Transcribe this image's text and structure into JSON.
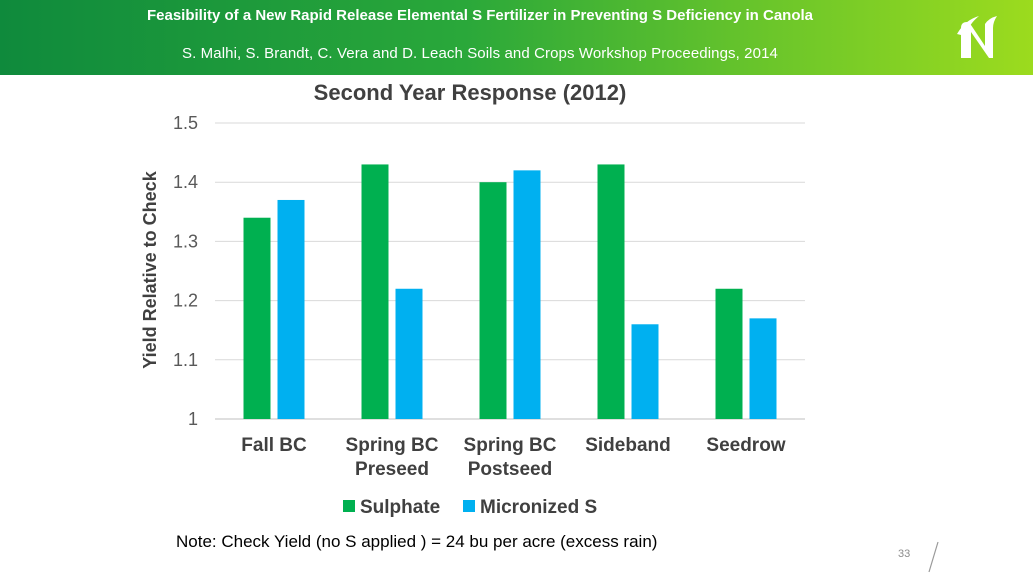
{
  "header": {
    "title": "Feasibility of a New Rapid Release Elemental S Fertilizer in Preventing S Deficiency in Canola",
    "subtitle": "S. Malhi, S. Brandt, C. Vera and D. Leach Soils and Crops Workshop Proceedings, 2014",
    "logo_icon": "stylized-n-leaf-logo-icon"
  },
  "chart_data": {
    "type": "bar",
    "title": "Second Year Response (2012)",
    "xlabel": "",
    "ylabel": "Yield Relative to Check",
    "categories": [
      [
        "Fall BC"
      ],
      [
        "Spring BC",
        "Preseed"
      ],
      [
        "Spring BC",
        "Postseed"
      ],
      [
        "Sideband"
      ],
      [
        "Seedrow"
      ]
    ],
    "ylim": [
      1,
      1.5
    ],
    "yticks": [
      "1",
      "1.1",
      "1.2",
      "1.3",
      "1.4",
      "1.5"
    ],
    "grid": true,
    "legend_position": "bottom",
    "series": [
      {
        "name": "Sulphate",
        "color": "#00b050",
        "values": [
          1.34,
          1.43,
          1.4,
          1.43,
          1.22
        ]
      },
      {
        "name": "Micronized S",
        "color": "#00b0f0",
        "values": [
          1.37,
          1.22,
          1.42,
          1.16,
          1.17
        ]
      }
    ]
  },
  "footer": {
    "note": "Note: Check Yield (no S applied ) = 24 bu per acre (excess rain)",
    "page_number": "33"
  }
}
